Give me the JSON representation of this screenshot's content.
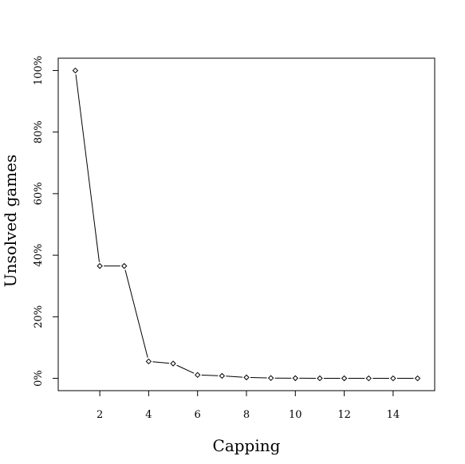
{
  "chart_data": {
    "type": "line",
    "title": "",
    "xlabel": "Capping",
    "ylabel": "Unsolved games",
    "x": [
      1,
      2,
      3,
      4,
      5,
      6,
      7,
      8,
      9,
      10,
      11,
      12,
      13,
      14,
      15
    ],
    "series": [
      {
        "name": "",
        "values": [
          100,
          36.5,
          36.5,
          5.5,
          4.8,
          1.1,
          0.8,
          0.3,
          0.1,
          0.05,
          0.02,
          0.01,
          0.0,
          0.0,
          0.0
        ]
      }
    ],
    "xlim": [
      0.3,
      15.7
    ],
    "ylim": [
      -4,
      104
    ],
    "x_ticks": [
      2,
      4,
      6,
      8,
      10,
      12,
      14
    ],
    "x_tick_labels": [
      "2",
      "4",
      "6",
      "8",
      "10",
      "12",
      "14"
    ],
    "y_ticks": [
      0,
      20,
      40,
      60,
      80,
      100
    ],
    "y_tick_labels": [
      "0%",
      "20%",
      "40%",
      "60%",
      "80%",
      "100%"
    ],
    "marker": "open-diamond",
    "line_color": "#000000",
    "grid": false,
    "legend": "none"
  }
}
